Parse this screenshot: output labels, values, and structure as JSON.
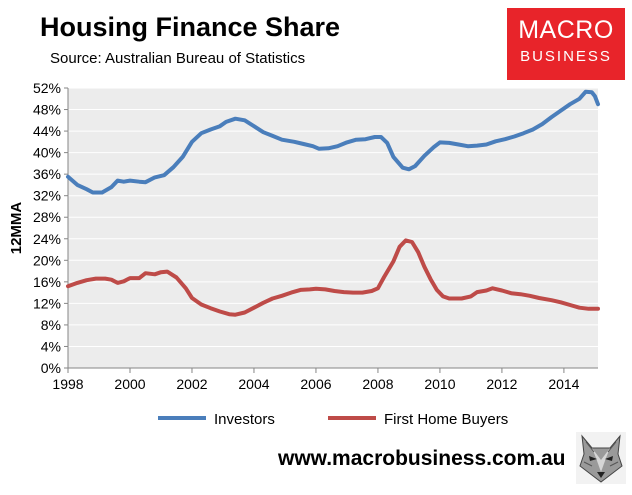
{
  "header": {
    "title": "Housing Finance Share",
    "subtitle": "Source: Australian Bureau of Statistics"
  },
  "logo": {
    "line1": "MACRO",
    "line2": "BUSINESS"
  },
  "footer": {
    "url": "www.macrobusiness.com.au"
  },
  "mascot": {
    "icon": "wolf-face-icon"
  },
  "colors": {
    "investors": "#4a7ebb",
    "first_home_buyers": "#be4b48",
    "plot_bg": "#ececec",
    "brand": "#e8242a"
  },
  "chart_data": {
    "type": "line",
    "title": "Housing Finance Share",
    "xlabel": "",
    "ylabel": "12MMA",
    "xlim": [
      1998,
      2015.1
    ],
    "ylim": [
      0,
      52
    ],
    "x_ticks": [
      "1998",
      "2000",
      "2002",
      "2004",
      "2006",
      "2008",
      "2010",
      "2012",
      "2014"
    ],
    "y_ticks": [
      "0%",
      "4%",
      "8%",
      "12%",
      "16%",
      "20%",
      "24%",
      "28%",
      "32%",
      "36%",
      "40%",
      "44%",
      "48%",
      "52%"
    ],
    "grid": "horizontal",
    "legend": "bottom",
    "series": [
      {
        "name": "Investors",
        "color": "#4a7ebb",
        "points": [
          [
            1998.0,
            35.5
          ],
          [
            1998.3,
            34.0
          ],
          [
            1998.6,
            33.2
          ],
          [
            1998.8,
            32.6
          ],
          [
            1999.1,
            32.6
          ],
          [
            1999.4,
            33.6
          ],
          [
            1999.6,
            34.8
          ],
          [
            1999.8,
            34.6
          ],
          [
            2000.0,
            34.8
          ],
          [
            2000.3,
            34.6
          ],
          [
            2000.5,
            34.5
          ],
          [
            2000.8,
            35.4
          ],
          [
            2001.1,
            35.8
          ],
          [
            2001.4,
            37.3
          ],
          [
            2001.7,
            39.2
          ],
          [
            2002.0,
            42.0
          ],
          [
            2002.3,
            43.6
          ],
          [
            2002.6,
            44.3
          ],
          [
            2002.9,
            44.9
          ],
          [
            2003.1,
            45.7
          ],
          [
            2003.4,
            46.3
          ],
          [
            2003.7,
            46.0
          ],
          [
            2004.0,
            44.9
          ],
          [
            2004.3,
            43.8
          ],
          [
            2004.6,
            43.1
          ],
          [
            2004.9,
            42.4
          ],
          [
            2005.3,
            42.0
          ],
          [
            2005.6,
            41.6
          ],
          [
            2005.9,
            41.2
          ],
          [
            2006.1,
            40.7
          ],
          [
            2006.4,
            40.8
          ],
          [
            2006.7,
            41.2
          ],
          [
            2007.0,
            41.9
          ],
          [
            2007.3,
            42.4
          ],
          [
            2007.6,
            42.5
          ],
          [
            2007.9,
            42.9
          ],
          [
            2008.1,
            42.9
          ],
          [
            2008.3,
            41.8
          ],
          [
            2008.5,
            39.2
          ],
          [
            2008.8,
            37.2
          ],
          [
            2009.0,
            36.9
          ],
          [
            2009.2,
            37.5
          ],
          [
            2009.5,
            39.4
          ],
          [
            2009.8,
            41.0
          ],
          [
            2010.0,
            41.9
          ],
          [
            2010.3,
            41.8
          ],
          [
            2010.6,
            41.5
          ],
          [
            2010.9,
            41.2
          ],
          [
            2011.2,
            41.3
          ],
          [
            2011.5,
            41.5
          ],
          [
            2011.8,
            42.1
          ],
          [
            2012.1,
            42.5
          ],
          [
            2012.4,
            43.0
          ],
          [
            2012.7,
            43.6
          ],
          [
            2013.0,
            44.3
          ],
          [
            2013.3,
            45.3
          ],
          [
            2013.6,
            46.6
          ],
          [
            2013.9,
            47.8
          ],
          [
            2014.2,
            49.0
          ],
          [
            2014.5,
            50.0
          ],
          [
            2014.7,
            51.3
          ],
          [
            2014.9,
            51.2
          ],
          [
            2015.0,
            50.5
          ],
          [
            2015.1,
            49.0
          ]
        ]
      },
      {
        "name": "First Home Buyers",
        "color": "#be4b48",
        "points": [
          [
            1998.0,
            15.2
          ],
          [
            1998.3,
            15.8
          ],
          [
            1998.6,
            16.3
          ],
          [
            1998.9,
            16.6
          ],
          [
            1999.2,
            16.6
          ],
          [
            1999.4,
            16.4
          ],
          [
            1999.6,
            15.8
          ],
          [
            1999.8,
            16.1
          ],
          [
            2000.0,
            16.7
          ],
          [
            2000.3,
            16.7
          ],
          [
            2000.5,
            17.6
          ],
          [
            2000.8,
            17.4
          ],
          [
            2001.0,
            17.8
          ],
          [
            2001.2,
            17.9
          ],
          [
            2001.5,
            16.8
          ],
          [
            2001.8,
            14.8
          ],
          [
            2002.0,
            13.0
          ],
          [
            2002.3,
            11.8
          ],
          [
            2002.6,
            11.1
          ],
          [
            2002.9,
            10.5
          ],
          [
            2003.2,
            10.0
          ],
          [
            2003.4,
            9.9
          ],
          [
            2003.7,
            10.3
          ],
          [
            2004.0,
            11.2
          ],
          [
            2004.3,
            12.1
          ],
          [
            2004.6,
            12.9
          ],
          [
            2004.9,
            13.4
          ],
          [
            2005.2,
            14.0
          ],
          [
            2005.5,
            14.5
          ],
          [
            2005.8,
            14.6
          ],
          [
            2006.0,
            14.7
          ],
          [
            2006.3,
            14.6
          ],
          [
            2006.6,
            14.3
          ],
          [
            2006.9,
            14.1
          ],
          [
            2007.2,
            14.0
          ],
          [
            2007.5,
            14.0
          ],
          [
            2007.8,
            14.3
          ],
          [
            2008.0,
            14.8
          ],
          [
            2008.2,
            16.9
          ],
          [
            2008.5,
            19.8
          ],
          [
            2008.7,
            22.5
          ],
          [
            2008.9,
            23.7
          ],
          [
            2009.1,
            23.4
          ],
          [
            2009.3,
            21.5
          ],
          [
            2009.5,
            18.8
          ],
          [
            2009.7,
            16.5
          ],
          [
            2009.9,
            14.5
          ],
          [
            2010.1,
            13.3
          ],
          [
            2010.3,
            12.9
          ],
          [
            2010.7,
            12.9
          ],
          [
            2011.0,
            13.3
          ],
          [
            2011.2,
            14.1
          ],
          [
            2011.5,
            14.4
          ],
          [
            2011.7,
            14.8
          ],
          [
            2012.0,
            14.4
          ],
          [
            2012.3,
            13.9
          ],
          [
            2012.6,
            13.7
          ],
          [
            2012.9,
            13.4
          ],
          [
            2013.2,
            13.0
          ],
          [
            2013.6,
            12.6
          ],
          [
            2013.9,
            12.2
          ],
          [
            2014.2,
            11.7
          ],
          [
            2014.5,
            11.2
          ],
          [
            2014.8,
            11.0
          ],
          [
            2015.1,
            11.0
          ]
        ]
      }
    ]
  }
}
